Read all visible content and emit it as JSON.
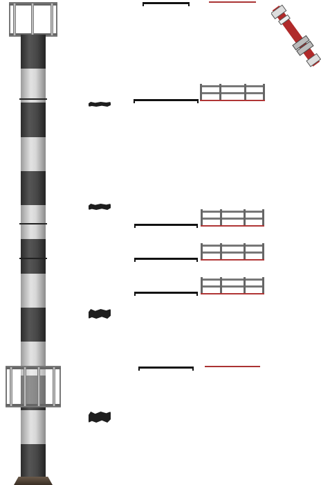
{
  "sheet": {
    "background": "#ffffff",
    "colors": {
      "steel_dark": "#2c2c2c",
      "steel_light": "#e2e2e2",
      "rail": "#777777",
      "accent_red": "#b03535",
      "base_brown": "#5a4a3a"
    }
  },
  "sprites": {
    "tower": {
      "icon": "striped-tower-pole-icon",
      "segments": [
        "dark",
        "light",
        "dark",
        "light",
        "dark",
        "light",
        "dark",
        "light",
        "dark",
        "light",
        "dark",
        "light",
        "dark"
      ]
    },
    "top_cage": {
      "icon": "railing-cage-icon"
    },
    "mid_cage": {
      "icon": "railing-cage-icon"
    },
    "pipe": {
      "icon": "red-white-pipe-icon"
    },
    "fences": {
      "icon": "fence-railing-icon",
      "count": 4
    },
    "bits": {
      "icon": "debris-bit-icon",
      "count": 4
    }
  }
}
